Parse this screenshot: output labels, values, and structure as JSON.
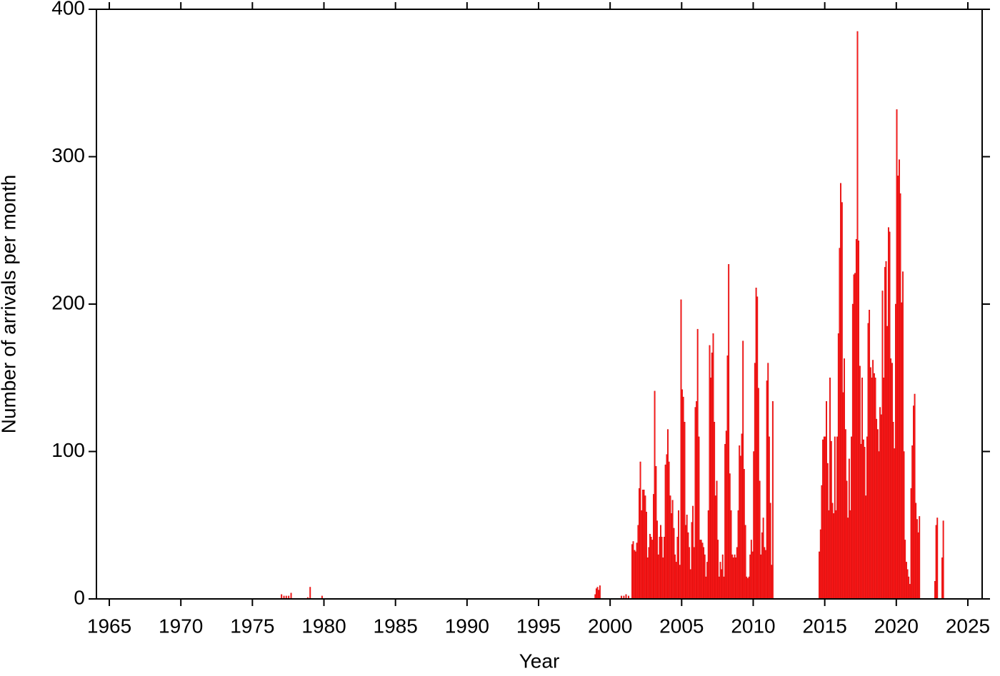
{
  "chart_data": {
    "type": "bar",
    "x_label": "Year",
    "y_label": "Number of arrivals per month",
    "color": "#ff1a1a",
    "edge_color": "#cc0000",
    "xlim": [
      1964.1,
      2026
    ],
    "ylim": [
      0,
      400
    ],
    "xticks": [
      1965,
      1970,
      1975,
      1980,
      1985,
      1990,
      1995,
      2000,
      2005,
      2010,
      2015,
      2020,
      2025
    ],
    "yticks": [
      0,
      100,
      200,
      300,
      400
    ],
    "x": [
      1977.0,
      1977.17,
      1977.33,
      1977.5,
      1977.67,
      1978.83,
      1979.0,
      1979.83,
      1998.92,
      1999.0,
      1999.08,
      1999.17,
      1999.25,
      2000.75,
      2000.92,
      2001.08,
      2001.25,
      2001.5,
      2001.58,
      2001.67,
      2001.75,
      2001.83,
      2001.92,
      2002.0,
      2002.08,
      2002.17,
      2002.25,
      2002.33,
      2002.42,
      2002.5,
      2002.58,
      2002.67,
      2002.75,
      2002.83,
      2002.92,
      2003.0,
      2003.08,
      2003.17,
      2003.25,
      2003.33,
      2003.42,
      2003.5,
      2003.58,
      2003.67,
      2003.75,
      2003.83,
      2003.92,
      2004.0,
      2004.08,
      2004.17,
      2004.25,
      2004.33,
      2004.42,
      2004.5,
      2004.58,
      2004.67,
      2004.75,
      2004.83,
      2004.92,
      2005.0,
      2005.08,
      2005.17,
      2005.25,
      2005.33,
      2005.42,
      2005.5,
      2005.58,
      2005.67,
      2005.75,
      2005.83,
      2005.92,
      2006.0,
      2006.08,
      2006.17,
      2006.25,
      2006.33,
      2006.42,
      2006.5,
      2006.58,
      2006.67,
      2006.75,
      2006.83,
      2006.92,
      2007.0,
      2007.08,
      2007.17,
      2007.25,
      2007.33,
      2007.42,
      2007.5,
      2007.58,
      2007.67,
      2007.75,
      2007.83,
      2007.92,
      2008.0,
      2008.08,
      2008.17,
      2008.25,
      2008.33,
      2008.42,
      2008.5,
      2008.58,
      2008.67,
      2008.75,
      2008.83,
      2008.92,
      2009.0,
      2009.08,
      2009.17,
      2009.25,
      2009.33,
      2009.42,
      2009.5,
      2009.58,
      2009.67,
      2009.75,
      2009.83,
      2009.92,
      2010.0,
      2010.08,
      2010.17,
      2010.25,
      2010.33,
      2010.42,
      2010.5,
      2010.58,
      2010.67,
      2010.75,
      2010.83,
      2010.92,
      2011.0,
      2011.08,
      2011.17,
      2011.25,
      2011.33,
      2014.58,
      2014.67,
      2014.75,
      2014.83,
      2014.92,
      2015.0,
      2015.08,
      2015.17,
      2015.25,
      2015.33,
      2015.42,
      2015.5,
      2015.58,
      2015.67,
      2015.75,
      2015.83,
      2015.92,
      2016.0,
      2016.08,
      2016.17,
      2016.25,
      2016.33,
      2016.42,
      2016.5,
      2016.58,
      2016.67,
      2016.75,
      2016.83,
      2016.92,
      2017.0,
      2017.08,
      2017.17,
      2017.25,
      2017.33,
      2017.42,
      2017.5,
      2017.58,
      2017.67,
      2017.75,
      2017.83,
      2017.92,
      2018.0,
      2018.08,
      2018.17,
      2018.25,
      2018.33,
      2018.42,
      2018.5,
      2018.58,
      2018.67,
      2018.75,
      2018.83,
      2018.92,
      2019.0,
      2019.08,
      2019.17,
      2019.25,
      2019.33,
      2019.42,
      2019.5,
      2019.58,
      2019.67,
      2019.75,
      2019.83,
      2019.92,
      2020.0,
      2020.08,
      2020.17,
      2020.25,
      2020.33,
      2020.42,
      2020.5,
      2020.58,
      2020.67,
      2020.75,
      2020.83,
      2020.92,
      2021.0,
      2021.08,
      2021.17,
      2021.25,
      2021.33,
      2021.42,
      2021.5,
      2021.58,
      2022.67,
      2022.75,
      2022.83,
      2023.17,
      2023.25
    ],
    "values": [
      3,
      2,
      2,
      2,
      4,
      1,
      8,
      2,
      3,
      7,
      8,
      6,
      9,
      2,
      2,
      3,
      2,
      37,
      39,
      33,
      32,
      38,
      50,
      75,
      93,
      60,
      74,
      74,
      70,
      59,
      28,
      35,
      44,
      42,
      40,
      71,
      141,
      90,
      53,
      30,
      42,
      50,
      42,
      28,
      42,
      91,
      98,
      115,
      93,
      70,
      58,
      67,
      48,
      30,
      25,
      42,
      60,
      23,
      203,
      142,
      137,
      120,
      50,
      57,
      45,
      35,
      20,
      52,
      63,
      35,
      130,
      134,
      183,
      110,
      40,
      40,
      38,
      35,
      30,
      15,
      25,
      60,
      172,
      150,
      167,
      180,
      120,
      70,
      80,
      40,
      15,
      25,
      20,
      30,
      15,
      105,
      114,
      165,
      227,
      85,
      60,
      30,
      28,
      30,
      28,
      35,
      60,
      104,
      97,
      112,
      175,
      88,
      50,
      15,
      14,
      15,
      30,
      40,
      32,
      100,
      160,
      211,
      205,
      143,
      80,
      30,
      45,
      55,
      35,
      33,
      148,
      160,
      110,
      65,
      23,
      134,
      32,
      47,
      77,
      108,
      110,
      110,
      134,
      92,
      60,
      150,
      107,
      65,
      58,
      110,
      60,
      110,
      180,
      238,
      282,
      269,
      140,
      163,
      115,
      80,
      55,
      95,
      60,
      110,
      200,
      220,
      221,
      244,
      385,
      243,
      158,
      105,
      150,
      108,
      103,
      70,
      110,
      187,
      196,
      157,
      150,
      162,
      153,
      150,
      122,
      115,
      100,
      130,
      125,
      209,
      150,
      225,
      229,
      185,
      252,
      249,
      163,
      160,
      120,
      102,
      200,
      332,
      287,
      298,
      275,
      201,
      222,
      100,
      40,
      25,
      20,
      15,
      10,
      75,
      104,
      131,
      139,
      65,
      54,
      45,
      56,
      12,
      50,
      55,
      28,
      53
    ]
  }
}
